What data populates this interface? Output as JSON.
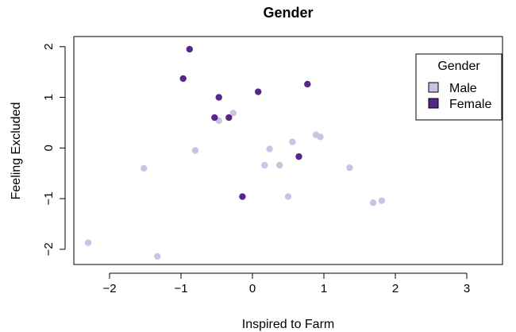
{
  "chart_data": {
    "type": "scatter",
    "title": "Gender",
    "xlabel": "Inspired to Farm",
    "ylabel": "Feeling Excluded",
    "xlim": [
      -2.5,
      3.5
    ],
    "ylim": [
      -2.3,
      2.2
    ],
    "xticks": [
      -2,
      -1,
      0,
      1,
      2,
      3
    ],
    "yticks": [
      -2,
      -1,
      0,
      1,
      2
    ],
    "grid": false,
    "legend": {
      "title": "Gender",
      "position": "top-right"
    },
    "series": [
      {
        "name": "Male",
        "color": "#cbc2e4",
        "points": [
          {
            "x": -2.3,
            "y": -1.87
          },
          {
            "x": -1.33,
            "y": -2.14
          },
          {
            "x": -1.52,
            "y": -0.4
          },
          {
            "x": -0.8,
            "y": -0.05
          },
          {
            "x": -0.47,
            "y": 0.54
          },
          {
            "x": -0.27,
            "y": 0.69
          },
          {
            "x": 0.17,
            "y": -0.34
          },
          {
            "x": 0.24,
            "y": -0.02
          },
          {
            "x": 0.38,
            "y": -0.34
          },
          {
            "x": 0.5,
            "y": -0.96
          },
          {
            "x": 0.56,
            "y": 0.12
          },
          {
            "x": 0.89,
            "y": 0.26
          },
          {
            "x": 0.95,
            "y": 0.22
          },
          {
            "x": 1.36,
            "y": -0.39
          },
          {
            "x": 1.69,
            "y": -1.08
          },
          {
            "x": 1.81,
            "y": -1.04
          }
        ]
      },
      {
        "name": "Female",
        "color": "#542788",
        "points": [
          {
            "x": -0.88,
            "y": 1.95
          },
          {
            "x": -0.97,
            "y": 1.37
          },
          {
            "x": -0.47,
            "y": 1.0
          },
          {
            "x": -0.53,
            "y": 0.6
          },
          {
            "x": -0.33,
            "y": 0.6
          },
          {
            "x": 0.08,
            "y": 1.11
          },
          {
            "x": 0.77,
            "y": 1.26
          },
          {
            "x": 0.65,
            "y": -0.17
          },
          {
            "x": -0.14,
            "y": -0.96
          }
        ]
      }
    ]
  }
}
